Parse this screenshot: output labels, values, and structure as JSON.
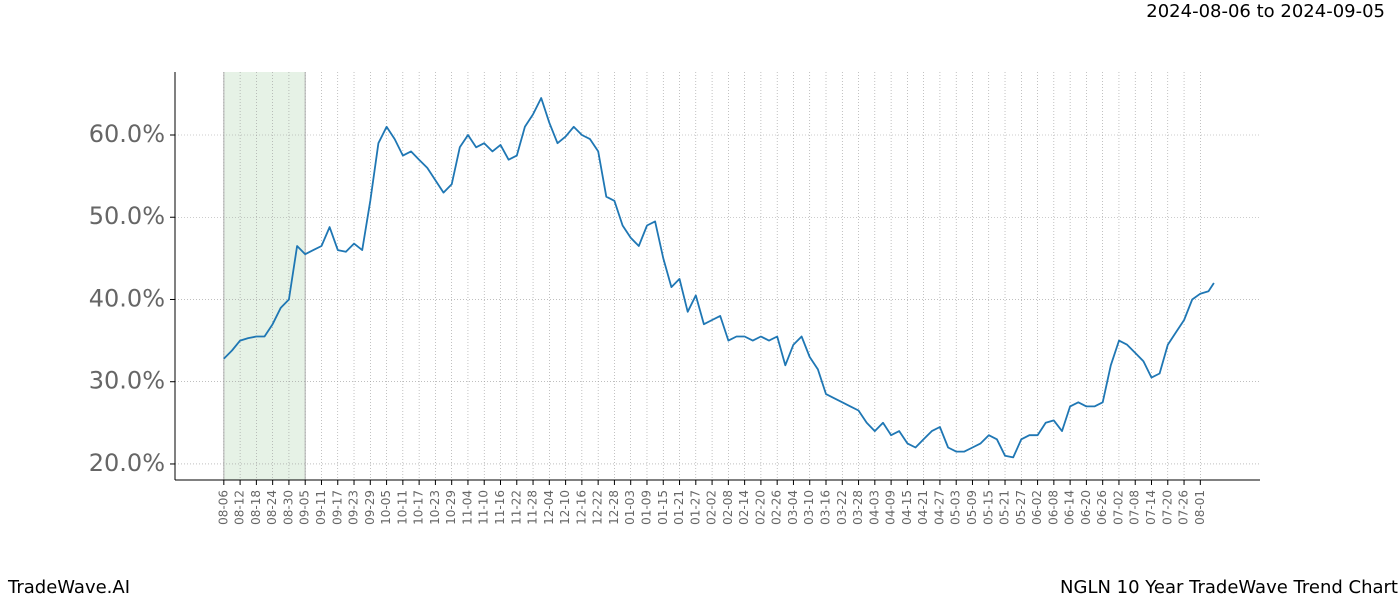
{
  "chart_data": {
    "type": "line",
    "title": "2024-08-06 to 2024-09-05",
    "footer_left": "TradeWave.AI",
    "footer_right": "NGLN 10 Year TradeWave Trend Chart",
    "color": "#1f77b4",
    "highlight_color": "#e6f2e6",
    "highlight_range": [
      0,
      30
    ],
    "grid": true,
    "x": [
      0,
      3,
      6,
      9,
      12,
      15,
      18,
      21,
      24,
      27,
      30,
      33,
      36,
      39,
      42,
      45,
      48,
      51,
      54,
      57,
      60,
      63,
      66,
      69,
      72,
      75,
      78,
      81,
      84,
      87,
      90,
      93,
      96,
      99,
      102,
      105,
      108,
      111,
      114,
      117,
      120,
      123,
      126,
      129,
      132,
      135,
      138,
      141,
      144,
      147,
      150,
      153,
      156,
      159,
      162,
      165,
      168,
      171,
      174,
      177,
      180,
      183,
      186,
      189,
      192,
      195,
      198,
      201,
      204,
      207,
      210,
      213,
      216,
      219,
      222,
      225,
      228,
      231,
      234,
      237,
      240,
      243,
      246,
      249,
      252,
      255,
      258,
      261,
      264,
      267,
      270,
      273,
      276,
      279,
      282,
      285,
      288,
      291,
      294,
      297,
      300,
      303,
      306,
      309,
      312,
      315,
      318,
      321,
      324,
      327,
      330,
      333,
      336,
      339,
      342,
      345,
      348,
      351,
      354,
      357,
      360,
      363,
      365
    ],
    "values": [
      32.8,
      33.8,
      35,
      35.3,
      35.5,
      35.5,
      37,
      39,
      40,
      46.5,
      45.5,
      46,
      46.5,
      48.8,
      46,
      45.8,
      46.8,
      46,
      52,
      59,
      61,
      59.5,
      57.5,
      58,
      57,
      56,
      54.5,
      53,
      54,
      58.5,
      60,
      58.5,
      59,
      58,
      58.8,
      57,
      57.5,
      61,
      62.5,
      64.5,
      61.5,
      59,
      59.8,
      61,
      60,
      59.5,
      58,
      52.5,
      52,
      49,
      47.5,
      46.5,
      49,
      49.5,
      45,
      41.5,
      42.5,
      38.5,
      40.5,
      37,
      37.5,
      38,
      35,
      35.5,
      35.5,
      35,
      35.5,
      35,
      35.5,
      32,
      34.5,
      35.5,
      33,
      31.5,
      28.5,
      28,
      27.5,
      27,
      26.5,
      25,
      24,
      25,
      23.5,
      24,
      22.5,
      22,
      23,
      24,
      24.5,
      22,
      21.5,
      21.5,
      22,
      22.5,
      23.5,
      23,
      21,
      20.8,
      23,
      23.5,
      23.5,
      25,
      25.3,
      24,
      27,
      27.5,
      27,
      27,
      27.5,
      32,
      35,
      34.5,
      33.5,
      32.5,
      30.5,
      31,
      34.5,
      36,
      37.5,
      40,
      40.7,
      41,
      42
    ],
    "xlim": [
      -18,
      382
    ],
    "xticks": [
      {
        "value": 0,
        "label": "08-06"
      },
      {
        "value": 6,
        "label": "08-12"
      },
      {
        "value": 12,
        "label": "08-18"
      },
      {
        "value": 18,
        "label": "08-24"
      },
      {
        "value": 24,
        "label": "08-30"
      },
      {
        "value": 30,
        "label": "09-05"
      },
      {
        "value": 36,
        "label": "09-11"
      },
      {
        "value": 42,
        "label": "09-17"
      },
      {
        "value": 48,
        "label": "09-23"
      },
      {
        "value": 54,
        "label": "09-29"
      },
      {
        "value": 60,
        "label": "10-05"
      },
      {
        "value": 66,
        "label": "10-11"
      },
      {
        "value": 72,
        "label": "10-17"
      },
      {
        "value": 78,
        "label": "10-23"
      },
      {
        "value": 84,
        "label": "10-29"
      },
      {
        "value": 90,
        "label": "11-04"
      },
      {
        "value": 96,
        "label": "11-10"
      },
      {
        "value": 102,
        "label": "11-16"
      },
      {
        "value": 108,
        "label": "11-22"
      },
      {
        "value": 114,
        "label": "11-28"
      },
      {
        "value": 120,
        "label": "12-04"
      },
      {
        "value": 126,
        "label": "12-10"
      },
      {
        "value": 132,
        "label": "12-16"
      },
      {
        "value": 138,
        "label": "12-22"
      },
      {
        "value": 144,
        "label": "12-28"
      },
      {
        "value": 150,
        "label": "01-03"
      },
      {
        "value": 156,
        "label": "01-09"
      },
      {
        "value": 162,
        "label": "01-15"
      },
      {
        "value": 168,
        "label": "01-21"
      },
      {
        "value": 174,
        "label": "01-27"
      },
      {
        "value": 180,
        "label": "02-02"
      },
      {
        "value": 186,
        "label": "02-08"
      },
      {
        "value": 192,
        "label": "02-14"
      },
      {
        "value": 198,
        "label": "02-20"
      },
      {
        "value": 204,
        "label": "02-26"
      },
      {
        "value": 210,
        "label": "03-04"
      },
      {
        "value": 216,
        "label": "03-10"
      },
      {
        "value": 222,
        "label": "03-16"
      },
      {
        "value": 228,
        "label": "03-22"
      },
      {
        "value": 234,
        "label": "03-28"
      },
      {
        "value": 240,
        "label": "04-03"
      },
      {
        "value": 246,
        "label": "04-09"
      },
      {
        "value": 252,
        "label": "04-15"
      },
      {
        "value": 258,
        "label": "04-21"
      },
      {
        "value": 264,
        "label": "04-27"
      },
      {
        "value": 270,
        "label": "05-03"
      },
      {
        "value": 276,
        "label": "05-09"
      },
      {
        "value": 282,
        "label": "05-15"
      },
      {
        "value": 288,
        "label": "05-21"
      },
      {
        "value": 294,
        "label": "05-27"
      },
      {
        "value": 300,
        "label": "06-02"
      },
      {
        "value": 306,
        "label": "06-08"
      },
      {
        "value": 312,
        "label": "06-14"
      },
      {
        "value": 318,
        "label": "06-20"
      },
      {
        "value": 324,
        "label": "06-26"
      },
      {
        "value": 330,
        "label": "07-02"
      },
      {
        "value": 336,
        "label": "07-08"
      },
      {
        "value": 342,
        "label": "07-14"
      },
      {
        "value": 348,
        "label": "07-20"
      },
      {
        "value": 354,
        "label": "07-26"
      },
      {
        "value": 360,
        "label": "08-01"
      }
    ],
    "ylim": [
      18.05,
      67.66
    ],
    "yticks": [
      {
        "value": 20,
        "label": "20.0%"
      },
      {
        "value": 30,
        "label": "30.0%"
      },
      {
        "value": 40,
        "label": "40.0%"
      },
      {
        "value": 50,
        "label": "50.0%"
      },
      {
        "value": 60,
        "label": "60.0%"
      }
    ]
  }
}
